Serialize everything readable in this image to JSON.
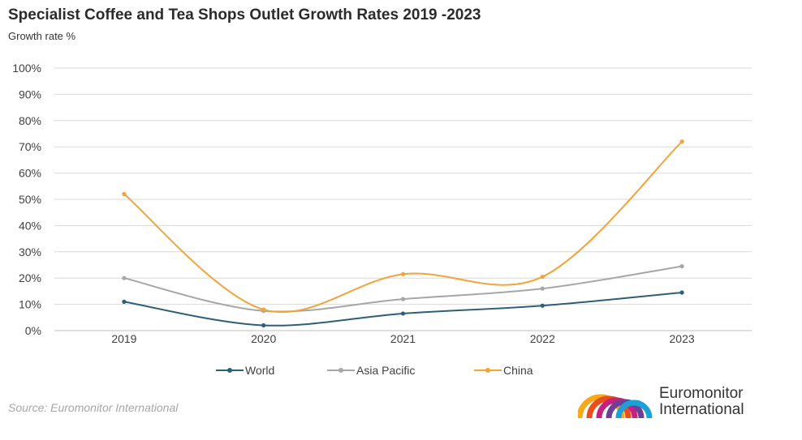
{
  "title": "Specialist Coffee and Tea Shops Outlet Growth Rates 2019 -2023",
  "subtitle": "Growth rate %",
  "source": "Source: Euromonitor International",
  "logo": {
    "line1": "Euromonitor",
    "line2": "International"
  },
  "chart_data": {
    "type": "line",
    "x": [
      "2019",
      "2020",
      "2021",
      "2022",
      "2023"
    ],
    "ylim": [
      0,
      100
    ],
    "ytick_labels": [
      "0%",
      "10%",
      "20%",
      "30%",
      "40%",
      "50%",
      "60%",
      "70%",
      "80%",
      "90%",
      "100%"
    ],
    "grid": true,
    "legend_position": "bottom",
    "smooth": true,
    "series": [
      {
        "name": "World",
        "color": "#2e5f77",
        "values": [
          11,
          2,
          6.5,
          9.5,
          14.5
        ]
      },
      {
        "name": "Asia Pacific",
        "color": "#a6a6a6",
        "values": [
          20,
          7.5,
          12,
          16,
          24.5
        ]
      },
      {
        "name": "China",
        "color": "#f4a33a",
        "values": [
          52,
          8,
          21.5,
          20.5,
          72
        ]
      }
    ]
  }
}
